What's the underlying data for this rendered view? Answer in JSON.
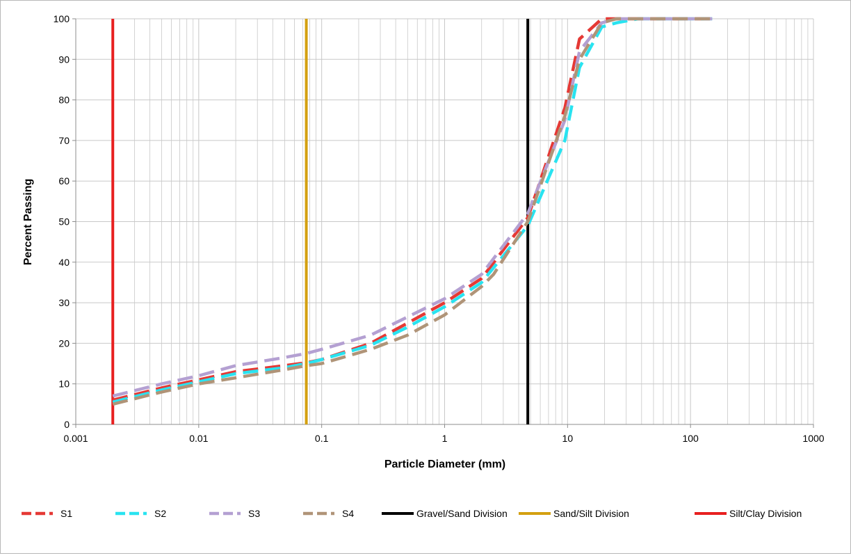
{
  "chart_data": {
    "type": "line",
    "xlabel": "Particle Diameter (mm)",
    "ylabel": "Percent Passing",
    "x_scale": "log",
    "xlim": [
      0.001,
      1000
    ],
    "ylim": [
      0,
      100
    ],
    "x_ticks": [
      "0.001",
      "0.01",
      "0.1",
      "1",
      "10",
      "100",
      "1000"
    ],
    "y_ticks": [
      "0",
      "10",
      "20",
      "30",
      "40",
      "50",
      "60",
      "70",
      "80",
      "90",
      "100"
    ],
    "grid": "on",
    "legend_position": "bottom",
    "series": [
      {
        "name": "S1",
        "color": "#e53935",
        "style": "dashed",
        "points": [
          [
            0.002,
            6
          ],
          [
            0.005,
            9
          ],
          [
            0.01,
            11
          ],
          [
            0.02,
            13
          ],
          [
            0.05,
            14.5
          ],
          [
            0.075,
            15.2
          ],
          [
            0.1,
            16
          ],
          [
            0.25,
            20
          ],
          [
            0.5,
            25
          ],
          [
            1,
            30
          ],
          [
            2,
            36
          ],
          [
            4.75,
            51
          ],
          [
            9.5,
            78
          ],
          [
            12.5,
            95
          ],
          [
            19,
            100
          ],
          [
            25,
            100
          ],
          [
            37.5,
            100
          ],
          [
            150,
            100
          ]
        ]
      },
      {
        "name": "S2",
        "color": "#29e3f0",
        "style": "dashed",
        "points": [
          [
            0.002,
            5.5
          ],
          [
            0.005,
            8.5
          ],
          [
            0.01,
            10.5
          ],
          [
            0.02,
            12.5
          ],
          [
            0.05,
            14
          ],
          [
            0.075,
            15
          ],
          [
            0.1,
            16
          ],
          [
            0.25,
            19.5
          ],
          [
            0.5,
            24
          ],
          [
            1,
            29
          ],
          [
            2,
            35
          ],
          [
            4.75,
            49
          ],
          [
            9.5,
            70
          ],
          [
            12.5,
            88
          ],
          [
            19,
            98
          ],
          [
            25,
            99
          ],
          [
            37.5,
            100
          ],
          [
            150,
            100
          ]
        ]
      },
      {
        "name": "S3",
        "color": "#b4a0d2",
        "style": "dashed",
        "points": [
          [
            0.002,
            7
          ],
          [
            0.005,
            10
          ],
          [
            0.01,
            12
          ],
          [
            0.02,
            14.5
          ],
          [
            0.05,
            16.5
          ],
          [
            0.075,
            17.5
          ],
          [
            0.1,
            18.5
          ],
          [
            0.25,
            22
          ],
          [
            0.5,
            26.5
          ],
          [
            1,
            31
          ],
          [
            2,
            37
          ],
          [
            4.75,
            52
          ],
          [
            9.5,
            75
          ],
          [
            12.5,
            92
          ],
          [
            19,
            99
          ],
          [
            25,
            100
          ],
          [
            37.5,
            100
          ],
          [
            150,
            100
          ]
        ]
      },
      {
        "name": "S4",
        "color": "#b09478",
        "style": "dashed",
        "points": [
          [
            0.002,
            5
          ],
          [
            0.005,
            8
          ],
          [
            0.01,
            10
          ],
          [
            0.02,
            11.5
          ],
          [
            0.05,
            13.5
          ],
          [
            0.075,
            14.5
          ],
          [
            0.1,
            15
          ],
          [
            0.25,
            18.5
          ],
          [
            0.5,
            22
          ],
          [
            1,
            27
          ],
          [
            2,
            34
          ],
          [
            2.5,
            37
          ],
          [
            4.75,
            50
          ],
          [
            9.5,
            76
          ],
          [
            12.5,
            90
          ],
          [
            19,
            99
          ],
          [
            25,
            100
          ],
          [
            37.5,
            100
          ],
          [
            150,
            100
          ]
        ]
      }
    ],
    "divisions": [
      {
        "name": "Gravel/Sand Division",
        "x": 4.75,
        "color": "#000000"
      },
      {
        "name": "Sand/Silt Division",
        "x": 0.075,
        "color": "#d4a010"
      },
      {
        "name": "Silt/Clay Division",
        "x": 0.002,
        "color": "#e82020"
      }
    ]
  }
}
